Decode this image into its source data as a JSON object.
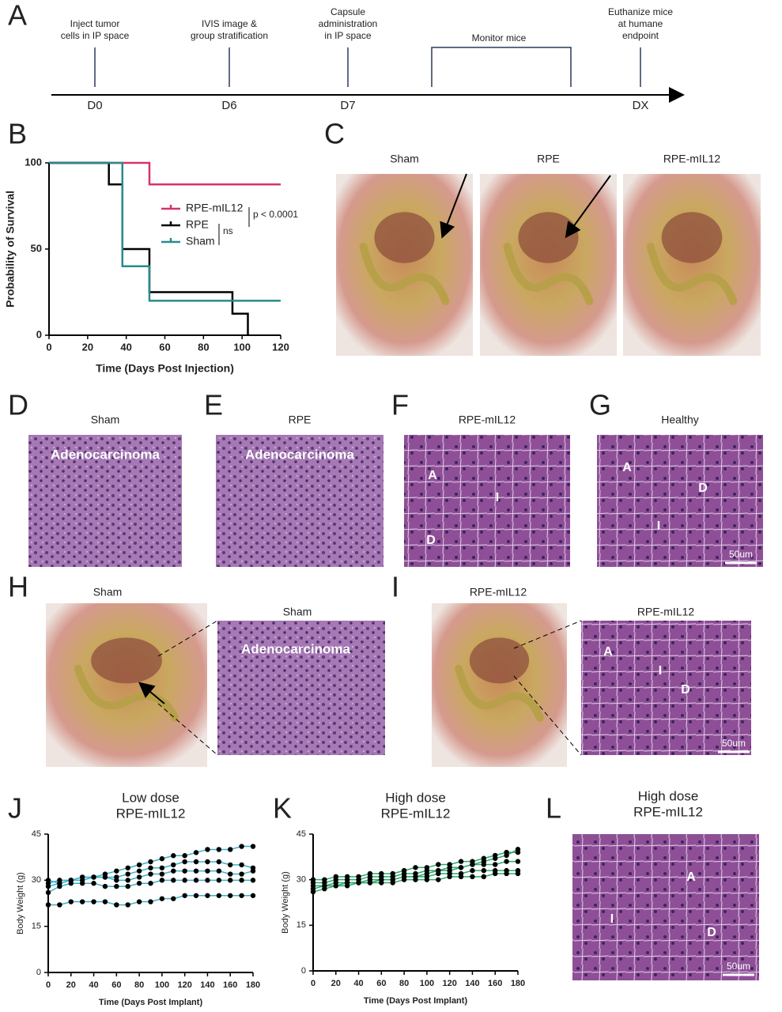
{
  "letters": [
    "A",
    "B",
    "C",
    "D",
    "E",
    "F",
    "G",
    "H",
    "I",
    "J",
    "K",
    "L"
  ],
  "timeline": {
    "events": [
      {
        "label_lines": [
          "Inject tumor",
          "cells in IP space"
        ],
        "day": "D0"
      },
      {
        "label_lines": [
          "IVIS image &",
          "group stratification"
        ],
        "day": "D6"
      },
      {
        "label_lines": [
          "Capsule",
          "administration",
          "in IP space"
        ],
        "day": "D7"
      },
      {
        "label_lines": [
          "Euthanize mice",
          "at humane",
          "endpoint"
        ],
        "day": "DX"
      }
    ],
    "bracket_label": "Monitor mice"
  },
  "photos_c": {
    "titles": [
      "Sham",
      "RPE",
      "RPE-mIL12"
    ]
  },
  "histology": [
    {
      "title": "Sham",
      "labels": [
        "Adenocarcinoma"
      ]
    },
    {
      "title": "RPE",
      "labels": [
        "Adenocarcinoma"
      ]
    },
    {
      "title": "RPE-mIL12",
      "labels": [
        "A",
        "I",
        "D"
      ]
    },
    {
      "title": "Healthy",
      "labels": [
        "A",
        "D",
        "I"
      ],
      "scale": "50um"
    }
  ],
  "row_h": {
    "photo_title": "Sham",
    "histology_title": "Sham",
    "histology_labels": [
      "Adenocarcinoma"
    ]
  },
  "row_i": {
    "photo_title": "RPE-mIL12",
    "histology_title": "RPE-mIL12",
    "histology_labels": [
      "A",
      "I",
      "D"
    ],
    "scale": "50um"
  },
  "panel_l": {
    "title_lines": [
      "High dose",
      "RPE-mIL12"
    ],
    "labels": [
      "I",
      "A",
      "D"
    ],
    "scale": "50um"
  },
  "chart_data": [
    {
      "type": "survival",
      "xlabel": "Time (Days Post Injection)",
      "ylabel": "Probability of Survival",
      "xlim": [
        0,
        120
      ],
      "ylim": [
        0,
        100
      ],
      "xticks": [
        0,
        20,
        40,
        60,
        80,
        100,
        120
      ],
      "yticks": [
        0,
        50,
        100
      ],
      "series": [
        {
          "name": "RPE-mIL12",
          "color": "#d6336c",
          "x": [
            0,
            52,
            120
          ],
          "values": [
            100,
            87.5,
            87.5
          ]
        },
        {
          "name": "RPE",
          "color": "#000000",
          "x": [
            0,
            31,
            38,
            52,
            95,
            103
          ],
          "values": [
            100,
            87.5,
            50,
            25,
            12.5,
            0
          ]
        },
        {
          "name": "Sham",
          "color": "#2a8a8f",
          "x": [
            0,
            38,
            52,
            120
          ],
          "values": [
            100,
            40,
            20,
            20
          ]
        }
      ],
      "annotations": [
        "p < 0.0001",
        "ns"
      ]
    },
    {
      "type": "line",
      "title_lines": [
        "Low dose",
        "RPE-mIL12"
      ],
      "xlabel": "Time (Days Post Implant)",
      "ylabel": "Body Weight (g)",
      "xlim": [
        0,
        180
      ],
      "ylim": [
        0,
        45
      ],
      "xticks": [
        0,
        20,
        40,
        60,
        80,
        100,
        120,
        140,
        160,
        180
      ],
      "yticks": [
        0,
        15,
        30,
        45
      ],
      "marker_color": "#000000",
      "x": [
        0,
        10,
        20,
        30,
        40,
        50,
        60,
        70,
        80,
        90,
        100,
        110,
        120,
        130,
        140,
        150,
        160,
        170,
        180
      ],
      "series": [
        {
          "color": "#3bb0c9",
          "values": [
            22,
            22,
            23,
            23,
            23,
            23,
            22,
            22,
            23,
            23,
            24,
            24,
            25,
            25,
            25,
            25,
            25,
            25,
            25
          ]
        },
        {
          "color": "#3bb0c9",
          "values": [
            26,
            28,
            29,
            29,
            29,
            28,
            28,
            28,
            29,
            29,
            30,
            30,
            30,
            30,
            30,
            30,
            30,
            30,
            30
          ]
        },
        {
          "color": "#3bb0c9",
          "values": [
            28,
            29,
            30,
            30,
            31,
            31,
            30,
            30,
            31,
            32,
            32,
            33,
            33,
            33,
            33,
            33,
            32,
            32,
            33
          ]
        },
        {
          "color": "#3bb0c9",
          "values": [
            29,
            30,
            30,
            31,
            31,
            31,
            31,
            32,
            33,
            34,
            34,
            35,
            36,
            36,
            36,
            36,
            35,
            35,
            34
          ]
        },
        {
          "color": "#3bb0c9",
          "values": [
            30,
            29,
            30,
            31,
            31,
            32,
            33,
            34,
            35,
            36,
            37,
            38,
            38,
            39,
            40,
            40,
            40,
            41,
            41
          ]
        }
      ]
    },
    {
      "type": "line",
      "title_lines": [
        "High dose",
        "RPE-mIL12"
      ],
      "xlabel": "Time (Days Post Implant)",
      "ylabel": "Body Weight (g)",
      "xlim": [
        0,
        180
      ],
      "ylim": [
        0,
        45
      ],
      "xticks": [
        0,
        20,
        40,
        60,
        80,
        100,
        120,
        140,
        160,
        180
      ],
      "yticks": [
        0,
        15,
        30,
        45
      ],
      "marker_color": "#000000",
      "x": [
        0,
        10,
        20,
        30,
        40,
        50,
        60,
        70,
        80,
        90,
        100,
        110,
        120,
        130,
        140,
        150,
        160,
        170,
        180
      ],
      "series": [
        {
          "color": "#2fa86a",
          "values": [
            27,
            28,
            28,
            29,
            29,
            29,
            29,
            29,
            30,
            30,
            30,
            30,
            31,
            31,
            31,
            31,
            32,
            32,
            32
          ]
        },
        {
          "color": "#2fa86a",
          "values": [
            28,
            28,
            29,
            29,
            29,
            30,
            30,
            30,
            31,
            31,
            31,
            32,
            32,
            32,
            33,
            33,
            33,
            33,
            33
          ]
        },
        {
          "color": "#2fa86a",
          "values": [
            29,
            29,
            30,
            30,
            30,
            31,
            31,
            31,
            32,
            32,
            33,
            33,
            34,
            34,
            35,
            35,
            35,
            36,
            36
          ]
        },
        {
          "color": "#2fa86a",
          "values": [
            30,
            30,
            31,
            31,
            31,
            32,
            32,
            32,
            33,
            34,
            34,
            35,
            35,
            36,
            36,
            37,
            38,
            39,
            39
          ]
        },
        {
          "color": "#2fa86a",
          "values": [
            26,
            27,
            28,
            28,
            29,
            29,
            30,
            30,
            31,
            31,
            32,
            33,
            33,
            34,
            35,
            36,
            37,
            38,
            40
          ]
        }
      ]
    }
  ]
}
